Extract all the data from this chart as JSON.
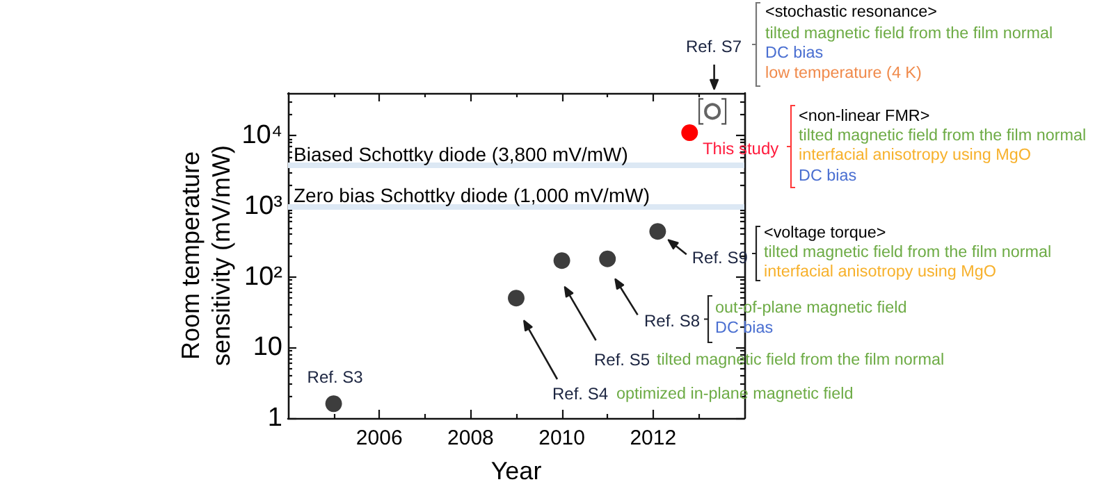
{
  "chart_data": {
    "type": "scatter",
    "xlabel": "Year",
    "ylabel": "Room temperature\nsensitivity (mV/mW)",
    "xlim": [
      2004,
      2014
    ],
    "xticks": [
      {
        "value": 2005,
        "label": null
      },
      2006,
      {
        "value": 2007,
        "label": null
      },
      2008,
      {
        "value": 2009,
        "label": null
      },
      2010,
      {
        "value": 2011,
        "label": null
      },
      2012,
      {
        "value": 2013,
        "label": null
      }
    ],
    "ylim": [
      1,
      40000
    ],
    "yticks": [
      1,
      {
        "value": 2,
        "label": null
      },
      {
        "value": 3,
        "label": null
      },
      {
        "value": 4,
        "label": null
      },
      {
        "value": 5,
        "label": null
      },
      {
        "value": 6,
        "label": null
      },
      {
        "value": 7,
        "label": null
      },
      {
        "value": 8,
        "label": null
      },
      {
        "value": 9,
        "label": null
      },
      10,
      {
        "value": 20,
        "label": null
      },
      {
        "value": 30,
        "label": null
      },
      {
        "value": 40,
        "label": null
      },
      {
        "value": 50,
        "label": null
      },
      {
        "value": 60,
        "label": null
      },
      {
        "value": 70,
        "label": null
      },
      {
        "value": 80,
        "label": null
      },
      {
        "value": 90,
        "label": null
      },
      {
        "value": 100,
        "label": "10²"
      },
      {
        "value": 200,
        "label": null
      },
      {
        "value": 300,
        "label": null
      },
      {
        "value": 400,
        "label": null
      },
      {
        "value": 500,
        "label": null
      },
      {
        "value": 600,
        "label": null
      },
      {
        "value": 700,
        "label": null
      },
      {
        "value": 800,
        "label": null
      },
      {
        "value": 900,
        "label": null
      },
      {
        "value": 1000,
        "label": "10³"
      },
      {
        "value": 2000,
        "label": null
      },
      {
        "value": 3000,
        "label": null
      },
      {
        "value": 4000,
        "label": null
      },
      {
        "value": 5000,
        "label": null
      },
      {
        "value": 6000,
        "label": null
      },
      {
        "value": 7000,
        "label": null
      },
      {
        "value": 8000,
        "label": null
      },
      {
        "value": 9000,
        "label": null
      },
      {
        "value": 10000,
        "label": "10⁴"
      },
      {
        "value": 20000,
        "label": null
      },
      {
        "value": 30000,
        "label": null
      }
    ],
    "log": true,
    "marker": "circle",
    "series": [
      {
        "x": [
          2005,
          2009,
          2010,
          2011,
          2012.1
        ],
        "values": [
          1.6,
          50,
          170,
          180,
          440
        ],
        "color": "#3d3d3d"
      },
      {
        "x": [
          2012.8
        ],
        "values": [
          11000
        ],
        "color": "#ff0000"
      },
      {
        "x": [
          2013.3
        ],
        "values": [
          22000
        ],
        "color": "#3d3d3d",
        "marker": "open circle"
      }
    ],
    "ref_lines": [
      {
        "axis": "y",
        "value": 3800,
        "label": "Biased Schottky diode (3,800 mV/mW)",
        "color": "#dce8f4"
      },
      {
        "axis": "y",
        "value": 1000,
        "label": "Zero bias Schottky diode (1,000 mV/mW)",
        "color": "#dce8f4"
      }
    ],
    "annotations": [
      {
        "text": "Ref. S3",
        "x": 2005,
        "y": 1.6
      },
      "Ref. S4",
      "optimized in-plane magnetic field",
      "Ref. S5",
      "tilted magnetic field from the film normal",
      "Ref. S8",
      "out-of-plane magnetic field",
      "DC bias",
      {
        "text": "Ref. S9",
        "x": 2012.1,
        "y": 440
      },
      "<voltage torque>",
      "tilted magnetic field from the film normal",
      "interfacial anisotropy using MgO",
      {
        "text": "This study",
        "x": 2012.8,
        "y": 11000
      },
      "<non-linear FMR>",
      "tilted magnetic field from the film normal",
      "interfacial anisotropy using MgO",
      "DC bias",
      "Ref. S7",
      "<stochastic resonance>",
      "tilted magnetic field from the film normal",
      "DC bias",
      "low temperature (4 K)"
    ]
  }
}
